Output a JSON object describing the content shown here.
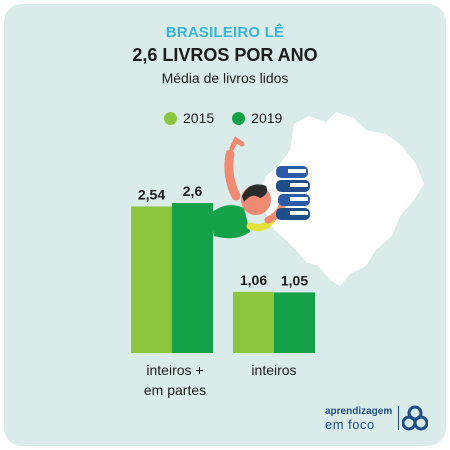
{
  "header": {
    "kicker": "BRASILEIRO LÊ",
    "title": "2,6 LIVROS POR ANO",
    "subtitle": "Média de livros lidos"
  },
  "colors": {
    "series_2015": "#8cc63f",
    "series_2019": "#15a14a",
    "background": "#d9ecea",
    "kicker": "#38b6d8"
  },
  "chart_data": {
    "type": "bar",
    "title": "2,6 LIVROS POR ANO",
    "subtitle": "Média de livros lidos",
    "categories": [
      "inteiros + em partes",
      "inteiros"
    ],
    "series": [
      {
        "name": "2015",
        "values": [
          2.54,
          1.06
        ],
        "labels": [
          "2,54",
          "1,06"
        ]
      },
      {
        "name": "2019",
        "values": [
          2.6,
          1.05
        ],
        "labels": [
          "2,6",
          "1,05"
        ]
      }
    ],
    "legend_position": "top",
    "grid": false
  },
  "categories_display": {
    "cat1_line1": "inteiros +",
    "cat1_line2": "em partes",
    "cat2": "inteiros"
  },
  "brand": {
    "line1": "aprendizagem",
    "line2": "em foco",
    "icon": "aprendizagem-em-foco-logo-icon"
  },
  "illustration": {
    "icons": [
      "brazil-map-icon",
      "person-reading-icon",
      "book-stack-icon"
    ]
  }
}
